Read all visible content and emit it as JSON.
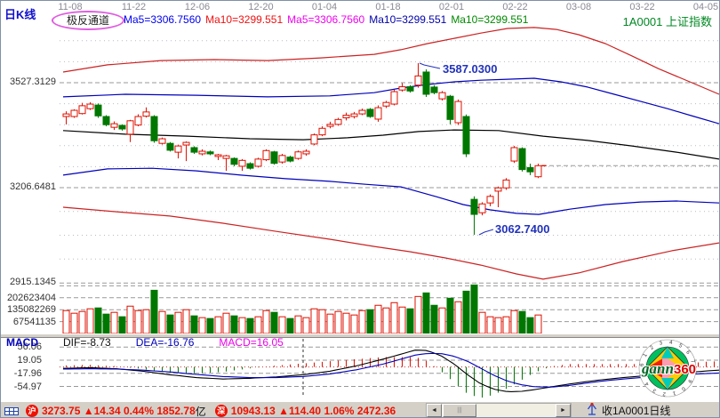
{
  "header": {
    "kline_label": "日K线",
    "badge": "极反通道",
    "dates": [
      "11-08",
      "11-22",
      "12-06",
      "12-20",
      "01-04",
      "01-18",
      "02-01",
      "02-22",
      "03-08",
      "03-22",
      "04-05"
    ],
    "ma_labels": [
      {
        "text": "Ma5=3306.7560",
        "color": "#0000ee"
      },
      {
        "text": "Ma10=3299.551",
        "color": "#ee1111"
      },
      {
        "text": "Ma5=3306.7560",
        "color": "#ee00ee"
      },
      {
        "text": "Ma10=3299.551",
        "color": "#0000aa"
      },
      {
        "text": "Ma10=3299.551",
        "color": "#008800"
      }
    ],
    "symbol": "1A0001  上证指数"
  },
  "axis": {
    "price_ticks": [
      "3527.3129",
      "3206.6481",
      "2915.1345"
    ],
    "volume_ticks": [
      "202623404",
      "135082269",
      "67541135"
    ],
    "macd_ticks": [
      "56.06",
      "19.05",
      "-17.96",
      "-54.97"
    ]
  },
  "annotations": {
    "high": "3587.0300",
    "low": "3062.7400"
  },
  "chart_data": {
    "type": "candlestick",
    "title": "1A0001 上证指数 日K线 极反通道",
    "x_dates": [
      "11-08",
      "11-22",
      "12-06",
      "12-20",
      "01-04",
      "01-18",
      "02-01",
      "02-22",
      "03-08",
      "03-22",
      "04-05"
    ],
    "price_gridlines": [
      3527.3129,
      3206.6481,
      2915.1345
    ],
    "volume_gridlines": [
      202623404,
      135082269,
      67541135
    ],
    "high_annotation": 3587.03,
    "low_annotation": 3062.74,
    "last_close": 3273.75,
    "candles_format": [
      "open",
      "high",
      "low",
      "close",
      "volume_1e8"
    ],
    "candles": [
      [
        3424,
        3440,
        3400,
        3432,
        1.3
      ],
      [
        3424,
        3446,
        3420,
        3443,
        1.15
      ],
      [
        3433,
        3466,
        3430,
        3457,
        1.25
      ],
      [
        3448,
        3468,
        3444,
        3462,
        1.4
      ],
      [
        3459,
        3464,
        3420,
        3426,
        1.45
      ],
      [
        3424,
        3428,
        3394,
        3399,
        1.1
      ],
      [
        3391,
        3409,
        3383,
        3402,
        1.2
      ],
      [
        3397,
        3400,
        3381,
        3386,
        0.95
      ],
      [
        3370,
        3414,
        3346,
        3411,
        1.55
      ],
      [
        3398,
        3431,
        3394,
        3424,
        1.3
      ],
      [
        3425,
        3452,
        3421,
        3438,
        1.35
      ],
      [
        3424,
        3428,
        3344,
        3350,
        2.45
      ],
      [
        3342,
        3360,
        3338,
        3356,
        1.25
      ],
      [
        3342,
        3346,
        3317,
        3321,
        1.05
      ],
      [
        3315,
        3338,
        3296,
        3334,
        1.2
      ],
      [
        3337,
        3348,
        3288,
        3345,
        1.35
      ],
      [
        3329,
        3333,
        3310,
        3315,
        1.0
      ],
      [
        3310,
        3324,
        3305,
        3318,
        0.9
      ],
      [
        3316,
        3320,
        3306,
        3310,
        0.85
      ],
      [
        3302,
        3310,
        3291,
        3307,
        0.95
      ],
      [
        3296,
        3307,
        3258,
        3304,
        1.15
      ],
      [
        3296,
        3299,
        3272,
        3278,
        1.0
      ],
      [
        3272,
        3294,
        3258,
        3290,
        0.9
      ],
      [
        3280,
        3284,
        3262,
        3266,
        0.85
      ],
      [
        3272,
        3298,
        3268,
        3294,
        0.95
      ],
      [
        3292,
        3324,
        3288,
        3320,
        1.3
      ],
      [
        3316,
        3319,
        3277,
        3281,
        1.2
      ],
      [
        3285,
        3310,
        3280,
        3305,
        0.95
      ],
      [
        3300,
        3304,
        3284,
        3288,
        0.85
      ],
      [
        3296,
        3320,
        3292,
        3316,
        1.0
      ],
      [
        3310,
        3324,
        3304,
        3318,
        0.9
      ],
      [
        3340,
        3372,
        3336,
        3368,
        1.4
      ],
      [
        3368,
        3394,
        3364,
        3388,
        1.35
      ],
      [
        3394,
        3408,
        3388,
        3400,
        1.1
      ],
      [
        3400,
        3420,
        3396,
        3415,
        1.25
      ],
      [
        3420,
        3436,
        3412,
        3428,
        1.15
      ],
      [
        3424,
        3438,
        3418,
        3432,
        1.05
      ],
      [
        3432,
        3448,
        3428,
        3443,
        1.3
      ],
      [
        3446,
        3450,
        3420,
        3424,
        1.35
      ],
      [
        3416,
        3458,
        3408,
        3451,
        1.6
      ],
      [
        3456,
        3472,
        3450,
        3467,
        1.45
      ],
      [
        3462,
        3506,
        3458,
        3500,
        1.75
      ],
      [
        3505,
        3526,
        3500,
        3515,
        1.5
      ],
      [
        3515,
        3520,
        3497,
        3502,
        1.4
      ],
      [
        3520,
        3587.03,
        3512,
        3548,
        2.1
      ],
      [
        3560,
        3568,
        3484,
        3492,
        2.3
      ],
      [
        3514,
        3520,
        3492,
        3497,
        1.6
      ],
      [
        3478,
        3502,
        3473,
        3497,
        1.45
      ],
      [
        3486,
        3490,
        3400,
        3415,
        2.0
      ],
      [
        3405,
        3476,
        3398,
        3470,
        1.8
      ],
      [
        3424,
        3430,
        3300,
        3310,
        2.4
      ],
      [
        3171,
        3180,
        3062.74,
        3125,
        2.75
      ],
      [
        3130,
        3162,
        3122,
        3157,
        1.2
      ],
      [
        3160,
        3186,
        3150,
        3180,
        0.95
      ],
      [
        3196,
        3210,
        3147,
        3206,
        0.9
      ],
      [
        3206,
        3236,
        3200,
        3230,
        0.95
      ],
      [
        3288,
        3334,
        3282,
        3329,
        1.3
      ],
      [
        3326,
        3330,
        3256,
        3262,
        1.25
      ],
      [
        3268,
        3280,
        3245,
        3255,
        0.9
      ],
      [
        3240,
        3280,
        3236,
        3273.75,
        1.05
      ]
    ],
    "channel_lines": {
      "upper_red": [
        [
          70,
          3560
        ],
        [
          120,
          3582
        ],
        [
          180,
          3595
        ],
        [
          240,
          3598
        ],
        [
          300,
          3595
        ],
        [
          360,
          3603
        ],
        [
          420,
          3614
        ],
        [
          450,
          3628
        ],
        [
          480,
          3647
        ],
        [
          510,
          3663
        ],
        [
          540,
          3679
        ],
        [
          570,
          3693
        ],
        [
          600,
          3696
        ],
        [
          625,
          3690
        ],
        [
          650,
          3674
        ],
        [
          680,
          3647
        ],
        [
          710,
          3609
        ],
        [
          740,
          3570
        ],
        [
          775,
          3530
        ],
        [
          808,
          3492
        ]
      ],
      "upper_blue": [
        [
          70,
          3484
        ],
        [
          140,
          3492
        ],
        [
          220,
          3489
        ],
        [
          300,
          3484
        ],
        [
          370,
          3487
        ],
        [
          420,
          3497
        ],
        [
          450,
          3511
        ],
        [
          480,
          3522
        ],
        [
          510,
          3530
        ],
        [
          540,
          3535
        ],
        [
          570,
          3538
        ],
        [
          600,
          3541
        ],
        [
          630,
          3530
        ],
        [
          660,
          3514
        ],
        [
          690,
          3492
        ],
        [
          720,
          3470
        ],
        [
          750,
          3448
        ],
        [
          780,
          3424
        ],
        [
          808,
          3402
        ]
      ],
      "middle_black": [
        [
          70,
          3381
        ],
        [
          140,
          3370
        ],
        [
          210,
          3364
        ],
        [
          280,
          3356
        ],
        [
          340,
          3353
        ],
        [
          390,
          3359
        ],
        [
          430,
          3367
        ],
        [
          470,
          3378
        ],
        [
          510,
          3383
        ],
        [
          560,
          3381
        ],
        [
          610,
          3364
        ],
        [
          660,
          3351
        ],
        [
          710,
          3334
        ],
        [
          760,
          3315
        ],
        [
          808,
          3294
        ]
      ],
      "lower_blue": [
        [
          70,
          3245
        ],
        [
          120,
          3264
        ],
        [
          170,
          3266
        ],
        [
          220,
          3258
        ],
        [
          270,
          3245
        ],
        [
          320,
          3234
        ],
        [
          370,
          3226
        ],
        [
          410,
          3217
        ],
        [
          450,
          3209
        ],
        [
          490,
          3179
        ],
        [
          520,
          3155
        ],
        [
          550,
          3139
        ],
        [
          580,
          3128
        ],
        [
          605,
          3125
        ],
        [
          640,
          3141
        ],
        [
          680,
          3155
        ],
        [
          720,
          3163
        ],
        [
          760,
          3166
        ],
        [
          808,
          3160
        ]
      ],
      "lower_red": [
        [
          70,
          3147
        ],
        [
          130,
          3133
        ],
        [
          190,
          3120
        ],
        [
          250,
          3098
        ],
        [
          310,
          3073
        ],
        [
          370,
          3049
        ],
        [
          420,
          3027
        ],
        [
          460,
          3011
        ],
        [
          500,
          2992
        ],
        [
          540,
          2970
        ],
        [
          580,
          2943
        ],
        [
          610,
          2927
        ],
        [
          650,
          2946
        ],
        [
          700,
          2981
        ],
        [
          755,
          3014
        ],
        [
          808,
          3038
        ]
      ]
    },
    "macd": {
      "name": "MACD",
      "dif_label": "DIF=-8.73",
      "dea_label": "DEA=-16.76",
      "macd_label": "MACD=16.05",
      "yticks": [
        56.06,
        19.05,
        -17.96,
        -54.97
      ],
      "hist_factor": 2,
      "dif": [
        [
          70,
          -4
        ],
        [
          100,
          -2
        ],
        [
          130,
          -5
        ],
        [
          160,
          -12
        ],
        [
          190,
          -22
        ],
        [
          220,
          -30
        ],
        [
          250,
          -34
        ],
        [
          280,
          -32
        ],
        [
          310,
          -28
        ],
        [
          340,
          -22
        ],
        [
          370,
          -12
        ],
        [
          400,
          3
        ],
        [
          430,
          22
        ],
        [
          450,
          36
        ],
        [
          467,
          48
        ],
        [
          480,
          46
        ],
        [
          495,
          32
        ],
        [
          510,
          8
        ],
        [
          525,
          -22
        ],
        [
          540,
          -48
        ],
        [
          555,
          -63
        ],
        [
          570,
          -70
        ],
        [
          585,
          -69
        ],
        [
          600,
          -64
        ],
        [
          620,
          -56
        ],
        [
          640,
          -48
        ],
        [
          660,
          -41
        ],
        [
          680,
          -35
        ],
        [
          700,
          -30
        ],
        [
          720,
          -26
        ],
        [
          740,
          -22
        ],
        [
          760,
          -18
        ],
        [
          780,
          -14
        ],
        [
          795,
          -11
        ],
        [
          810,
          -8.73
        ]
      ],
      "dea": [
        [
          70,
          -6
        ],
        [
          100,
          -5
        ],
        [
          130,
          -6
        ],
        [
          160,
          -9
        ],
        [
          190,
          -14
        ],
        [
          220,
          -21
        ],
        [
          250,
          -27
        ],
        [
          280,
          -30
        ],
        [
          310,
          -30
        ],
        [
          340,
          -27
        ],
        [
          370,
          -20
        ],
        [
          400,
          -8
        ],
        [
          430,
          8
        ],
        [
          450,
          22
        ],
        [
          467,
          34
        ],
        [
          480,
          38
        ],
        [
          495,
          38
        ],
        [
          510,
          30
        ],
        [
          525,
          16
        ],
        [
          540,
          -4
        ],
        [
          555,
          -24
        ],
        [
          570,
          -40
        ],
        [
          585,
          -50
        ],
        [
          600,
          -56
        ],
        [
          620,
          -57
        ],
        [
          640,
          -52
        ],
        [
          660,
          -45
        ],
        [
          680,
          -39
        ],
        [
          700,
          -34
        ],
        [
          720,
          -30
        ],
        [
          740,
          -27
        ],
        [
          760,
          -23
        ],
        [
          780,
          -20
        ],
        [
          795,
          -18.5
        ],
        [
          810,
          -16.76
        ]
      ]
    }
  },
  "colors": {
    "up": "#dd1100",
    "down": "#007700",
    "channel_red": "#cc2222",
    "channel_blue": "#0000bb",
    "channel_black": "#000000",
    "grid_dash": "#999999",
    "grid_dot": "#b8bcc8",
    "annotation": "#2233bb",
    "macd_zero": "#cc3333"
  },
  "statusbar": {
    "sh_badge": "沪",
    "sh_index": "3273.75",
    "sh_change": "▲14.34",
    "sh_pct": "0.44%",
    "sh_amount": "1852.78",
    "amount_unit": "亿",
    "sz_badge": "深",
    "sz_index": "10943.13",
    "sz_change": "▲114.40",
    "sz_pct": "1.06%",
    "sz_amount": "2472.36",
    "right_label": "收1A0001日线"
  },
  "logo": {
    "part1": "gann",
    "part2": "360",
    "ring_digits": "1234567890123456"
  }
}
